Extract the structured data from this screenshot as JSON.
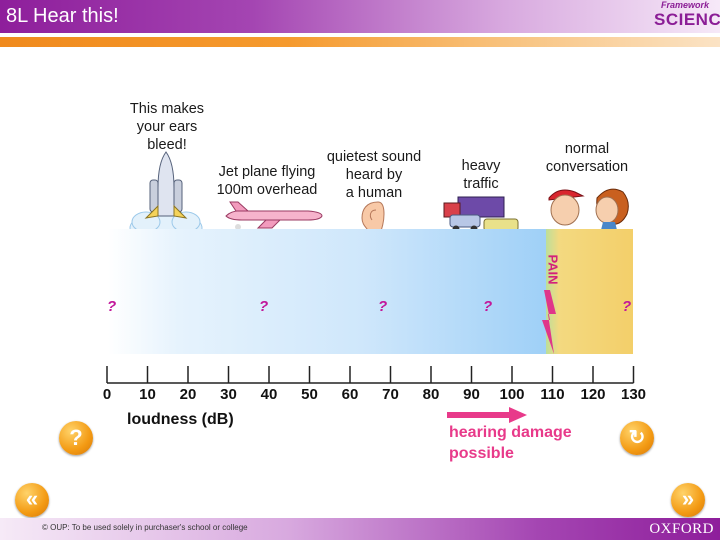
{
  "header": {
    "title": "8L Hear this!",
    "brand_top": "Framework",
    "brand_bottom": "SCIENCE"
  },
  "sources": {
    "bleed": "This makes\nyour ears\nbleed!",
    "jet": "Jet plane flying\n100m overhead",
    "quietest": "quietest sound\nheard by\na human",
    "traffic": "heavy\ntraffic",
    "conversation": "normal\nconversation"
  },
  "unknown_marker": "?",
  "pain_label": "PAIN",
  "axis": {
    "label": "loudness (dB)",
    "ticks": [
      "0",
      "10",
      "20",
      "30",
      "40",
      "50",
      "60",
      "70",
      "80",
      "90",
      "100",
      "110",
      "120",
      "130"
    ]
  },
  "damage_label": "hearing damage\npossible",
  "buttons": {
    "help": "?",
    "replay": "↻",
    "back": "«",
    "forward": "»"
  },
  "footer": {
    "copyright": "© OUP: To be used solely in purchaser's school or college",
    "publisher": "OXFORD"
  },
  "colors": {
    "title_purple": "#8e1e9b",
    "accent_orange": "#f39a13",
    "marker_magenta": "#c2179a",
    "pain_pink": "#e83a8a"
  }
}
